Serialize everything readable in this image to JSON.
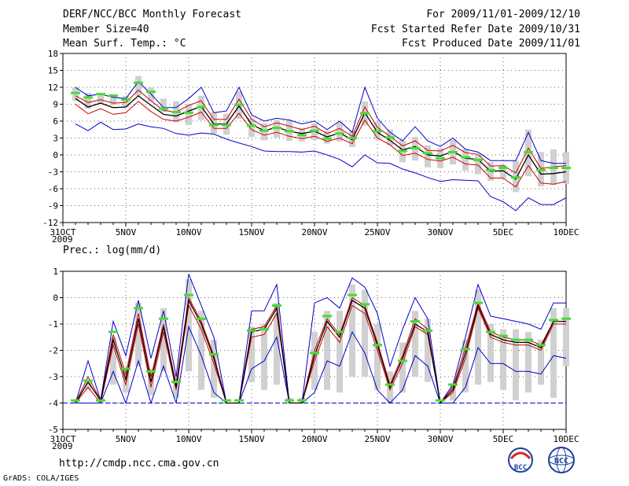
{
  "header": {
    "title": "DERF/NCC/BCC Monthly Forecast",
    "member": "Member Size=40",
    "variable": "Mean Surf. Temp.: °C",
    "period": "For 2009/11/01-2009/12/10",
    "started": "Fcst Started Refer Date 2009/10/31",
    "produced": "Fcst Produced Date 2009/11/01"
  },
  "footer": {
    "url": "http://cmdp.ncc.cma.gov.cn",
    "grads": "GrADS: COLA/IGES",
    "logo_left": "BCC",
    "logo_right": "NCC"
  },
  "colors": {
    "envelope": "#0000cc",
    "spread": "#cc0000",
    "mean": "#000000",
    "box": "#d0d0d0",
    "median": "#44dd33"
  },
  "chart_data": [
    {
      "type": "line",
      "title": "Mean Surf. Temp.: °C",
      "xlabel": "",
      "ylabel": "",
      "ylim": [
        -12,
        18
      ],
      "yticks": [
        -12,
        -9,
        -6,
        -3,
        0,
        3,
        6,
        9,
        12,
        15,
        18
      ],
      "xtick_labels": [
        "31OCT",
        "5NOV",
        "10NOV",
        "15NOV",
        "20NOV",
        "25NOV",
        "30NOV",
        "5DEC",
        "10DEC"
      ],
      "year_label": "2009",
      "x": [
        0,
        1,
        2,
        3,
        4,
        5,
        6,
        7,
        8,
        9,
        10,
        11,
        12,
        13,
        14,
        15,
        16,
        17,
        18,
        19,
        20,
        21,
        22,
        23,
        24,
        25,
        26,
        27,
        28,
        29,
        30,
        31,
        32,
        33,
        34,
        35,
        36,
        37,
        38,
        39,
        40
      ],
      "series": [
        {
          "name": "max",
          "values": [
            null,
            12,
            10.5,
            10.8,
            10.2,
            10,
            13,
            10.8,
            8.4,
            8.4,
            10,
            12,
            7.5,
            7.8,
            12,
            7.1,
            6,
            6.5,
            6.2,
            5.5,
            6,
            4.5,
            6,
            4,
            12,
            6.5,
            4,
            2.5,
            5,
            2.5,
            1.5,
            3,
            1,
            0.5,
            -1,
            -1,
            -1,
            4,
            -1,
            -1.5,
            -1.5
          ]
        },
        {
          "name": "upper",
          "values": [
            null,
            10.5,
            9.3,
            9.8,
            9.2,
            9.3,
            11.5,
            9.6,
            7.9,
            7.6,
            8.8,
            9.6,
            6.3,
            6.3,
            9.9,
            6.3,
            5,
            5.7,
            5.1,
            4.5,
            5.1,
            3.8,
            4.7,
            3.3,
            8.5,
            4.9,
            3.3,
            1.6,
            2.5,
            0.8,
            0.7,
            1.7,
            0.4,
            0.1,
            -2,
            -1.9,
            -3.2,
            1.2,
            -2.4,
            -2.1,
            -1.9
          ]
        },
        {
          "name": "mean",
          "values": [
            null,
            10,
            8.5,
            9.2,
            8.4,
            8.5,
            10.5,
            8.8,
            7.2,
            6.9,
            7.8,
            8.6,
            5.5,
            5.5,
            8.7,
            5.4,
            4.3,
            4.9,
            4.2,
            3.8,
            4.2,
            3.2,
            3.9,
            2.7,
            7.5,
            4,
            2.6,
            0.9,
            1.5,
            0,
            -0.2,
            0.6,
            -0.6,
            -0.8,
            -2.9,
            -2.8,
            -4.3,
            0,
            -3.4,
            -3.3,
            -3
          ]
        },
        {
          "name": "lower",
          "values": [
            null,
            9,
            7.3,
            8.2,
            7.2,
            7.5,
            9.5,
            7.7,
            6.3,
            6,
            6.7,
            7.6,
            4.7,
            4.7,
            7.4,
            4.5,
            3.5,
            4,
            3.3,
            2.9,
            3.3,
            2.4,
            3,
            2,
            6.2,
            3,
            1.8,
            -0.1,
            0.3,
            -0.8,
            -1.1,
            -0.4,
            -1.6,
            -1.8,
            -4.1,
            -4.1,
            -5.7,
            -1.9,
            -5,
            -5.2,
            -4.7
          ]
        },
        {
          "name": "min",
          "values": [
            null,
            5.5,
            4.3,
            5.8,
            4.5,
            4.6,
            5.5,
            5,
            4.7,
            3.8,
            3.5,
            3.9,
            3.7,
            2.8,
            2.1,
            1.5,
            0.7,
            0.6,
            0.6,
            0.5,
            0.7,
            0,
            -0.8,
            -2.1,
            0,
            -1.4,
            -1.5,
            -2.5,
            -3.2,
            -4,
            -4.7,
            -4.4,
            -4.5,
            -4.6,
            -7.4,
            -8.3,
            -9.9,
            -7.6,
            -8.8,
            -8.8,
            -7.6
          ]
        },
        {
          "name": "median",
          "values": [
            null,
            11,
            10.2,
            10.8,
            10.5,
            9.8,
            12.8,
            11.2,
            8.2,
            7.6,
            7.5,
            8.5,
            5.3,
            5.3,
            8.9,
            5.2,
            4.3,
            4.8,
            4.2,
            3.5,
            4.3,
            2.9,
            3.8,
            3,
            7.4,
            4.2,
            3.1,
            0.7,
            1.2,
            0.3,
            -0.6,
            0.5,
            -0.4,
            -0.9,
            -2.7,
            -2.3,
            -4,
            0.5,
            -2.7,
            -2.3,
            -2.3
          ]
        },
        {
          "name": "box_top",
          "values": [
            null,
            12,
            11,
            11,
            10.8,
            10.5,
            14,
            12,
            10,
            9.5,
            9,
            10.5,
            7.6,
            7.3,
            11.3,
            6.5,
            5.6,
            6.2,
            6.2,
            4.8,
            5.6,
            4.3,
            5.8,
            4.3,
            9.5,
            5.9,
            4.5,
            2.6,
            3.2,
            1.7,
            1.2,
            2.7,
            1,
            0,
            -1.3,
            -1.7,
            -1,
            4.5,
            0.5,
            1,
            0.5
          ]
        },
        {
          "name": "box_bottom",
          "values": [
            null,
            9.6,
            8.2,
            9.2,
            8.8,
            8.4,
            10.5,
            9.5,
            7.6,
            5.8,
            5.3,
            6.2,
            3.8,
            3.6,
            6.4,
            3.2,
            2.6,
            3.1,
            2.5,
            2.4,
            2.7,
            2,
            2.4,
            1.4,
            5.2,
            2.7,
            1.7,
            -1.3,
            -1,
            -2.2,
            -2.3,
            -1.7,
            -2.8,
            -3.4,
            -4.6,
            -4.1,
            -6.6,
            -3.8,
            -5.6,
            -5.3,
            -5.1
          ]
        }
      ]
    },
    {
      "type": "line",
      "title": "Prec.: log(mm/d)",
      "xlabel": "",
      "ylabel": "",
      "ylim": [
        -5,
        1
      ],
      "yticks": [
        -5,
        -4,
        -3,
        -2,
        -1,
        0,
        1
      ],
      "baseline": -4,
      "xtick_labels": [
        "31OCT",
        "5NOV",
        "10NOV",
        "15NOV",
        "20NOV",
        "25NOV",
        "30NOV",
        "5DEC",
        "10DEC"
      ],
      "year_label": "2009",
      "x": [
        0,
        1,
        2,
        3,
        4,
        5,
        6,
        7,
        8,
        9,
        10,
        11,
        12,
        13,
        14,
        15,
        16,
        17,
        18,
        19,
        20,
        21,
        22,
        23,
        24,
        25,
        26,
        27,
        28,
        29,
        30,
        31,
        32,
        33,
        34,
        35,
        36,
        37,
        38,
        39,
        40
      ],
      "series": [
        {
          "name": "max",
          "values": [
            null,
            -4,
            -2.4,
            -3.9,
            -0.9,
            -2.2,
            -0.1,
            -2.3,
            -0.5,
            -3,
            0.9,
            -0.3,
            -1.5,
            -4,
            -4,
            -0.5,
            -0.5,
            0.5,
            -4,
            -4,
            -0.2,
            0,
            -0.4,
            0.75,
            0.4,
            -0.6,
            -2.6,
            -1.2,
            0,
            -0.8,
            -4,
            -3.3,
            -1.5,
            0.5,
            -0.7,
            -0.8,
            -0.9,
            -1,
            -1.2,
            -0.2,
            -0.2
          ]
        },
        {
          "name": "upper",
          "values": [
            null,
            -4,
            -3,
            -3.9,
            -1.4,
            -2.9,
            -0.6,
            -3,
            -1,
            -3.3,
            0,
            -0.9,
            -2.2,
            -4,
            -4,
            -1.2,
            -1.1,
            -0.3,
            -4,
            -4,
            -2,
            -0.8,
            -1.4,
            0,
            -0.3,
            -1.7,
            -3.3,
            -2.2,
            -0.8,
            -1.2,
            -4,
            -3.4,
            -1.9,
            -0.2,
            -1.3,
            -1.5,
            -1.6,
            -1.6,
            -1.8,
            -0.9,
            -0.9
          ]
        },
        {
          "name": "mean",
          "values": [
            null,
            -4,
            -3.2,
            -3.9,
            -1.6,
            -3.1,
            -0.8,
            -3.2,
            -1.1,
            -3.4,
            -0.1,
            -1,
            -2.3,
            -4,
            -4,
            -1.3,
            -1.2,
            -0.4,
            -4,
            -4,
            -2.2,
            -0.9,
            -1.5,
            -0.1,
            -0.4,
            -1.8,
            -3.4,
            -2.3,
            -1,
            -1.3,
            -4,
            -3.5,
            -2.1,
            -0.3,
            -1.4,
            -1.6,
            -1.7,
            -1.7,
            -1.9,
            -0.9,
            -0.9
          ]
        },
        {
          "name": "lower",
          "values": [
            null,
            -4,
            -3.4,
            -4,
            -1.8,
            -3.3,
            -1,
            -3.4,
            -1.3,
            -3.5,
            -0.3,
            -1.2,
            -2.5,
            -4,
            -4,
            -1.5,
            -1.4,
            -0.6,
            -4,
            -4,
            -2.4,
            -1.1,
            -1.7,
            -0.3,
            -0.6,
            -2,
            -3.5,
            -2.5,
            -1.1,
            -1.4,
            -4,
            -3.6,
            -2.3,
            -0.4,
            -1.5,
            -1.7,
            -1.8,
            -1.8,
            -2,
            -1,
            -1
          ]
        },
        {
          "name": "min",
          "values": [
            null,
            -4,
            -4,
            -4,
            -2.8,
            -4,
            -2.4,
            -4,
            -2.6,
            -4,
            -1.1,
            -2.2,
            -3.6,
            -4,
            -4,
            -2.7,
            -2.4,
            -1.5,
            -4,
            -4,
            -3.6,
            -2.4,
            -2.6,
            -1.3,
            -2.1,
            -3.5,
            -4,
            -3.5,
            -2.2,
            -2.6,
            -4,
            -4,
            -3.4,
            -1.9,
            -2.5,
            -2.5,
            -2.8,
            -2.8,
            -2.9,
            -2.2,
            -2.3
          ]
        },
        {
          "name": "median",
          "values": [
            null,
            -3.9,
            -3.15,
            -3.9,
            -1.3,
            -2.7,
            -0.4,
            -2.8,
            -0.8,
            -3.2,
            0.1,
            -0.8,
            -2.15,
            -3.9,
            -3.9,
            -1.25,
            -1.2,
            -0.3,
            -3.9,
            -3.9,
            -2.1,
            -0.7,
            -1.3,
            0.1,
            -0.25,
            -1.8,
            -3.3,
            -2.4,
            -0.9,
            -1.25,
            -3.9,
            -3.3,
            -1.95,
            -0.2,
            -1.3,
            -1.45,
            -1.6,
            -1.6,
            -1.8,
            -0.85,
            -0.8
          ]
        },
        {
          "name": "box_top",
          "values": [
            null,
            -3.9,
            -3.2,
            -3.8,
            -1.5,
            -2.8,
            -0.2,
            -2.7,
            -0.4,
            -2.9,
            0.7,
            -0.5,
            -1.6,
            -4,
            -4,
            -1.1,
            -1,
            -0.2,
            -3.8,
            -3.8,
            -1.3,
            -0.5,
            -0.5,
            0.5,
            0.3,
            -1,
            -2.8,
            -1.7,
            -0.5,
            -0.8,
            -4,
            -3.3,
            -1.6,
            0.3,
            -1,
            -1.2,
            -1.2,
            -1.3,
            -1.6,
            -0.4,
            -0.4
          ]
        },
        {
          "name": "box_bottom",
          "values": [
            null,
            -4,
            -3.5,
            -4,
            -3.3,
            -3.6,
            -2.6,
            -3.7,
            -2.8,
            -3.8,
            -2.8,
            -3.5,
            -3.8,
            -4,
            -4,
            -3.2,
            -3.5,
            -3.3,
            -4,
            -4,
            -3.5,
            -3.5,
            -3.6,
            -3,
            -3,
            -3.5,
            -4,
            -3.6,
            -3,
            -3.2,
            -4,
            -3.9,
            -3.6,
            -3.3,
            -3.2,
            -3.5,
            -3.9,
            -3.6,
            -3.3,
            -3.8,
            -2.6
          ]
        }
      ]
    }
  ]
}
